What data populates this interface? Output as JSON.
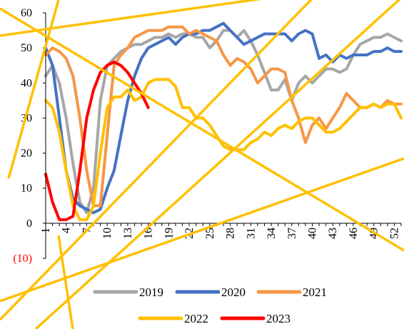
{
  "chart_data": {
    "type": "line",
    "title": "",
    "xlabel": "",
    "ylabel": "",
    "ylim": [
      -10,
      60
    ],
    "yticks": [
      -10,
      0,
      10,
      20,
      30,
      40,
      50,
      60
    ],
    "ytick_labels": [
      "(10)",
      "0",
      "10",
      "20",
      "30",
      "40",
      "50",
      "60"
    ],
    "negative_tick_color": "#ff0000",
    "xlim": [
      1,
      53
    ],
    "xticks": [
      1,
      4,
      7,
      10,
      13,
      16,
      19,
      22,
      25,
      28,
      31,
      34,
      37,
      40,
      43,
      46,
      49,
      52
    ],
    "grid": false,
    "legend_position": "bottom",
    "series": [
      {
        "name": "2019",
        "color": "#a6a6a6",
        "points": [
          [
            1,
            42
          ],
          [
            2,
            45
          ],
          [
            3,
            40
          ],
          [
            4,
            30
          ],
          [
            5,
            17
          ],
          [
            6,
            6
          ],
          [
            7,
            3
          ],
          [
            8,
            10
          ],
          [
            9,
            35
          ],
          [
            10,
            45
          ],
          [
            11,
            47
          ],
          [
            12,
            49
          ],
          [
            13,
            50
          ],
          [
            14,
            51
          ],
          [
            15,
            51
          ],
          [
            16,
            52
          ],
          [
            17,
            53
          ],
          [
            18,
            53
          ],
          [
            19,
            54
          ],
          [
            20,
            53
          ],
          [
            21,
            54
          ],
          [
            22,
            54
          ],
          [
            23,
            53
          ],
          [
            24,
            53
          ],
          [
            25,
            50
          ],
          [
            26,
            52
          ],
          [
            27,
            55
          ],
          [
            28,
            55
          ],
          [
            29,
            53
          ],
          [
            30,
            55
          ],
          [
            31,
            52
          ],
          [
            32,
            48
          ],
          [
            33,
            43
          ],
          [
            34,
            38
          ],
          [
            35,
            38
          ],
          [
            36,
            41
          ],
          [
            37,
            35
          ],
          [
            38,
            40
          ],
          [
            39,
            42
          ],
          [
            40,
            40
          ],
          [
            41,
            42
          ],
          [
            42,
            44
          ],
          [
            43,
            44
          ],
          [
            44,
            43
          ],
          [
            45,
            44
          ],
          [
            46,
            48
          ],
          [
            47,
            51
          ],
          [
            48,
            52
          ],
          [
            49,
            53
          ],
          [
            50,
            53
          ],
          [
            51,
            54
          ],
          [
            52,
            53
          ],
          [
            53,
            52
          ]
        ]
      },
      {
        "name": "2020",
        "color": "#4472c4",
        "points": [
          [
            1,
            50
          ],
          [
            2,
            45
          ],
          [
            3,
            30
          ],
          [
            4,
            15
          ],
          [
            5,
            7
          ],
          [
            6,
            5
          ],
          [
            7,
            4
          ],
          [
            8,
            3
          ],
          [
            9,
            4
          ],
          [
            10,
            10
          ],
          [
            11,
            15
          ],
          [
            12,
            25
          ],
          [
            13,
            35
          ],
          [
            14,
            42
          ],
          [
            15,
            47
          ],
          [
            16,
            50
          ],
          [
            17,
            51
          ],
          [
            18,
            52
          ],
          [
            19,
            53
          ],
          [
            20,
            51
          ],
          [
            21,
            53
          ],
          [
            22,
            54
          ],
          [
            23,
            54
          ],
          [
            24,
            55
          ],
          [
            25,
            55
          ],
          [
            26,
            56
          ],
          [
            27,
            57
          ],
          [
            28,
            55
          ],
          [
            29,
            53
          ],
          [
            30,
            51
          ],
          [
            31,
            52
          ],
          [
            32,
            53
          ],
          [
            33,
            54
          ],
          [
            34,
            54
          ],
          [
            35,
            54
          ],
          [
            36,
            54
          ],
          [
            37,
            52
          ],
          [
            38,
            54
          ],
          [
            39,
            55
          ],
          [
            40,
            54
          ],
          [
            41,
            47
          ],
          [
            42,
            48
          ],
          [
            43,
            46
          ],
          [
            44,
            48
          ],
          [
            45,
            47
          ],
          [
            46,
            48
          ],
          [
            47,
            48
          ],
          [
            48,
            48
          ],
          [
            49,
            49
          ],
          [
            50,
            49
          ],
          [
            51,
            50
          ],
          [
            52,
            49
          ],
          [
            53,
            49
          ]
        ]
      },
      {
        "name": "2021",
        "color": "#f79646",
        "points": [
          [
            1,
            48
          ],
          [
            2,
            50
          ],
          [
            3,
            49
          ],
          [
            4,
            47
          ],
          [
            5,
            42
          ],
          [
            6,
            30
          ],
          [
            7,
            15
          ],
          [
            8,
            5
          ],
          [
            9,
            5
          ],
          [
            10,
            25
          ],
          [
            11,
            45
          ],
          [
            12,
            48
          ],
          [
            13,
            50
          ],
          [
            14,
            53
          ],
          [
            15,
            54
          ],
          [
            16,
            55
          ],
          [
            17,
            55
          ],
          [
            18,
            55
          ],
          [
            19,
            56
          ],
          [
            20,
            56
          ],
          [
            21,
            56
          ],
          [
            22,
            54
          ],
          [
            23,
            55
          ],
          [
            24,
            54
          ],
          [
            25,
            53
          ],
          [
            26,
            52
          ],
          [
            27,
            48
          ],
          [
            28,
            45
          ],
          [
            29,
            47
          ],
          [
            30,
            46
          ],
          [
            31,
            44
          ],
          [
            32,
            40
          ],
          [
            33,
            42
          ],
          [
            34,
            44
          ],
          [
            35,
            44
          ],
          [
            36,
            43
          ],
          [
            37,
            35
          ],
          [
            38,
            30
          ],
          [
            39,
            23
          ],
          [
            40,
            28
          ],
          [
            41,
            30
          ],
          [
            42,
            27
          ],
          [
            43,
            30
          ],
          [
            44,
            33
          ],
          [
            45,
            37
          ],
          [
            46,
            35
          ],
          [
            47,
            33
          ],
          [
            48,
            33
          ],
          [
            49,
            34
          ],
          [
            50,
            33
          ],
          [
            51,
            35
          ],
          [
            52,
            34
          ],
          [
            53,
            34
          ]
        ]
      },
      {
        "name": "2022",
        "color": "#ffc000",
        "points": [
          [
            1,
            35
          ],
          [
            2,
            33
          ],
          [
            3,
            26
          ],
          [
            4,
            15
          ],
          [
            5,
            5
          ],
          [
            6,
            1
          ],
          [
            7,
            1
          ],
          [
            8,
            5
          ],
          [
            9,
            20
          ],
          [
            10,
            33
          ],
          [
            11,
            36
          ],
          [
            12,
            36
          ],
          [
            13,
            38
          ],
          [
            14,
            35
          ],
          [
            15,
            36
          ],
          [
            16,
            40
          ],
          [
            17,
            41
          ],
          [
            18,
            41
          ],
          [
            19,
            41
          ],
          [
            20,
            39
          ],
          [
            21,
            33
          ],
          [
            22,
            33
          ],
          [
            23,
            30
          ],
          [
            24,
            30
          ],
          [
            25,
            28
          ],
          [
            26,
            25
          ],
          [
            27,
            22
          ],
          [
            28,
            21
          ],
          [
            29,
            21
          ],
          [
            30,
            21
          ],
          [
            31,
            23
          ],
          [
            32,
            24
          ],
          [
            33,
            26
          ],
          [
            34,
            25
          ],
          [
            35,
            27
          ],
          [
            36,
            28
          ],
          [
            37,
            27
          ],
          [
            38,
            29
          ],
          [
            39,
            30
          ],
          [
            40,
            30
          ],
          [
            41,
            28
          ],
          [
            42,
            26
          ],
          [
            43,
            26
          ],
          [
            44,
            27
          ],
          [
            45,
            29
          ],
          [
            46,
            31
          ],
          [
            47,
            33
          ],
          [
            48,
            33
          ],
          [
            49,
            34
          ],
          [
            50,
            33
          ],
          [
            51,
            34
          ],
          [
            52,
            34
          ],
          [
            53,
            30
          ]
        ]
      },
      {
        "name": "2023",
        "color": "#ff0000",
        "points": [
          [
            1,
            14
          ],
          [
            2,
            6
          ],
          [
            3,
            1
          ],
          [
            4,
            1
          ],
          [
            5,
            2
          ],
          [
            6,
            15
          ],
          [
            7,
            30
          ],
          [
            8,
            38
          ],
          [
            9,
            43
          ],
          [
            10,
            45
          ],
          [
            11,
            46
          ],
          [
            12,
            45
          ],
          [
            13,
            43
          ],
          [
            14,
            40
          ],
          [
            15,
            37
          ],
          [
            16,
            33
          ]
        ]
      }
    ]
  }
}
